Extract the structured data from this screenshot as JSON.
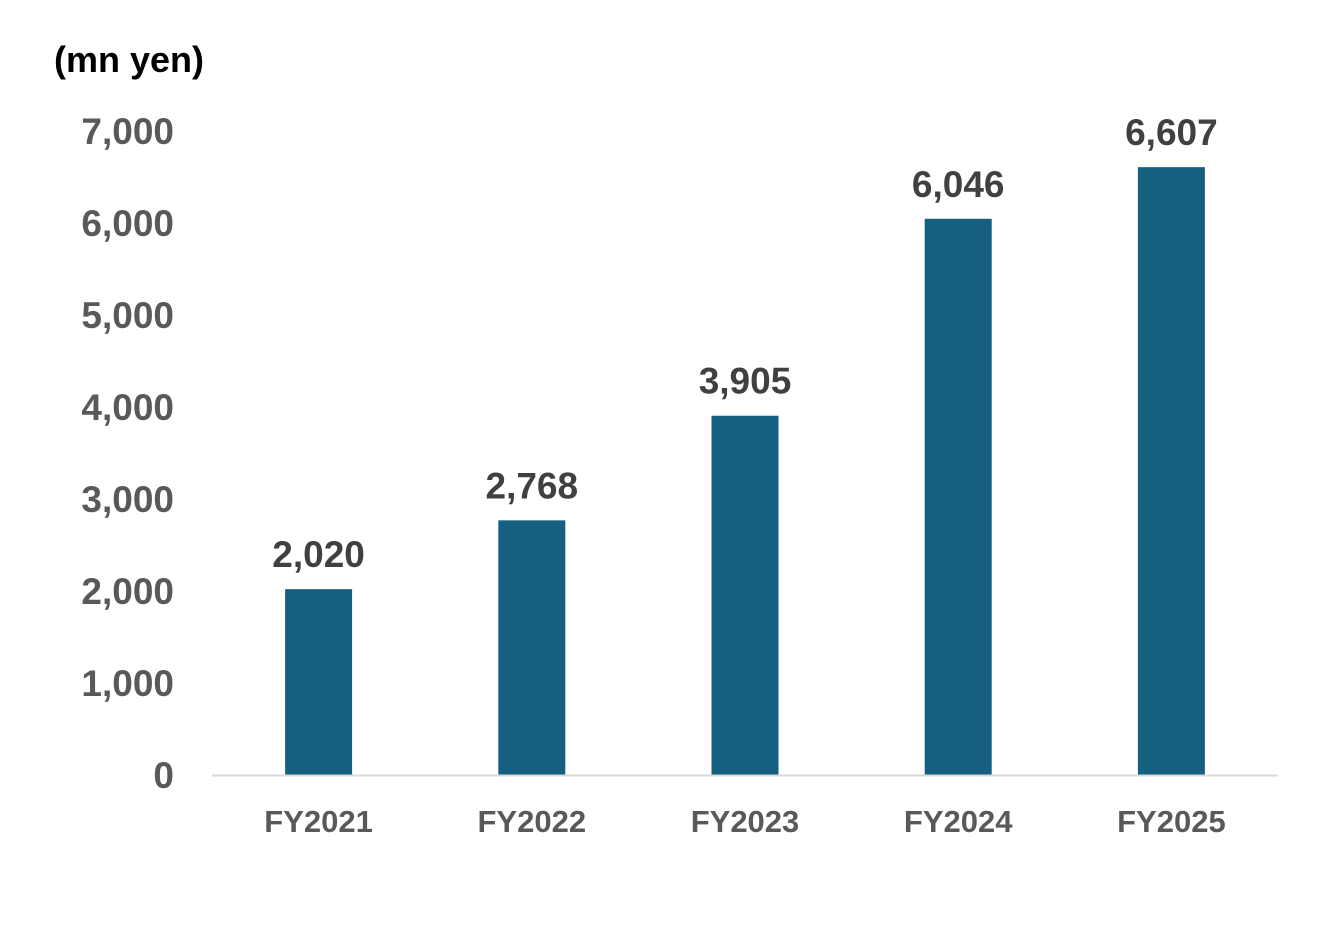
{
  "chart_data": {
    "type": "bar",
    "ylabel": "(mn yen)",
    "categories": [
      "FY2021",
      "FY2022",
      "FY2023",
      "FY2024",
      "FY2025"
    ],
    "values": [
      2020,
      2768,
      3905,
      6046,
      6607
    ],
    "data_labels": [
      "2,020",
      "2,768",
      "3,905",
      "6,046",
      "6,607"
    ],
    "ylim": [
      0,
      7000
    ],
    "yticks": [
      0,
      1000,
      2000,
      3000,
      4000,
      5000,
      6000,
      7000
    ],
    "ytick_labels": [
      "0",
      "1,000",
      "2,000",
      "3,000",
      "4,000",
      "5,000",
      "6,000",
      "7,000"
    ],
    "grid": false,
    "legend": "none"
  },
  "colors": {
    "bar": "#155f80",
    "axis_line": "#d9d9d9",
    "tick_label": "#595959",
    "data_label": "#404040",
    "unit_label": "#000000"
  }
}
